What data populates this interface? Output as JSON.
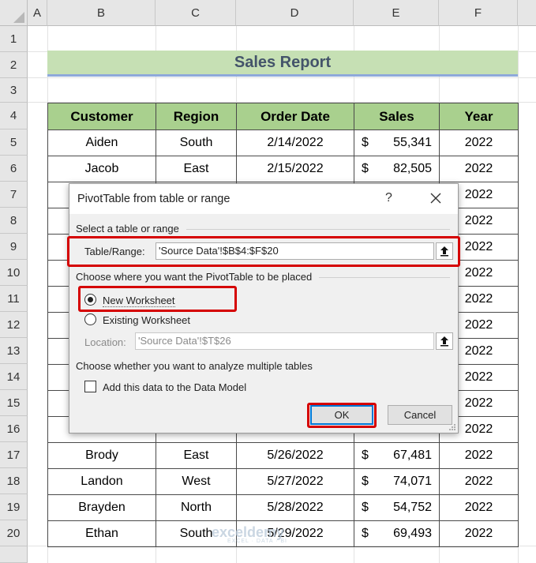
{
  "spreadsheet": {
    "columns": [
      "A",
      "B",
      "C",
      "D",
      "E",
      "F"
    ],
    "rows": [
      "1",
      "2",
      "3",
      "4",
      "5",
      "6",
      "7",
      "8",
      "9",
      "10",
      "11",
      "12",
      "13",
      "14",
      "15",
      "16",
      "17",
      "18",
      "19",
      "20"
    ],
    "title": "Sales Report",
    "headers": [
      "Customer",
      "Region",
      "Order Date",
      "Sales",
      "Year"
    ],
    "currency": "$",
    "top_rows": [
      {
        "customer": "Aiden",
        "region": "South",
        "date": "2/14/2022",
        "sales": "55,341",
        "year": "2022"
      },
      {
        "customer": "Jacob",
        "region": "East",
        "date": "2/15/2022",
        "sales": "82,505",
        "year": "2022"
      }
    ],
    "bottom_rows": [
      {
        "customer": "Brody",
        "region": "East",
        "date": "5/26/2022",
        "sales": "67,481",
        "year": "2022"
      },
      {
        "customer": "Landon",
        "region": "West",
        "date": "5/27/2022",
        "sales": "74,071",
        "year": "2022"
      },
      {
        "customer": "Brayden",
        "region": "North",
        "date": "5/28/2022",
        "sales": "54,752",
        "year": "2022"
      },
      {
        "customer": "Ethan",
        "region": "South",
        "date": "5/29/2022",
        "sales": "69,493",
        "year": "2022"
      }
    ],
    "visible_years_right": [
      "2022",
      "2022",
      "2022",
      "2022",
      "2022",
      "2022",
      "2022",
      "2022",
      "2022",
      "2022"
    ]
  },
  "dialog": {
    "title": "PivotTable from table or range",
    "help": "?",
    "section1": "Select a table or range",
    "table_range_label": "Table/Range:",
    "table_range_value": "'Source Data'!$B$4:$F$20",
    "section2": "Choose where you want the PivotTable to be placed",
    "option_new": "New Worksheet",
    "option_existing": "Existing Worksheet",
    "location_label": "Location:",
    "location_value": "'Source Data'!$T$26",
    "section3": "Choose whether you want to analyze multiple tables",
    "data_model_label": "Add this data to the Data Model",
    "ok_label": "OK",
    "cancel_label": "Cancel",
    "selected_option": "New Worksheet",
    "data_model_checked": false
  },
  "watermark": {
    "brand": "exceldemy",
    "tagline": "EXCEL · DATA · BI"
  },
  "colors": {
    "header_green": "#a9d08e",
    "title_green": "#c6e0b4",
    "highlight_red": "#d50000",
    "accent_blue": "#0078d7"
  }
}
